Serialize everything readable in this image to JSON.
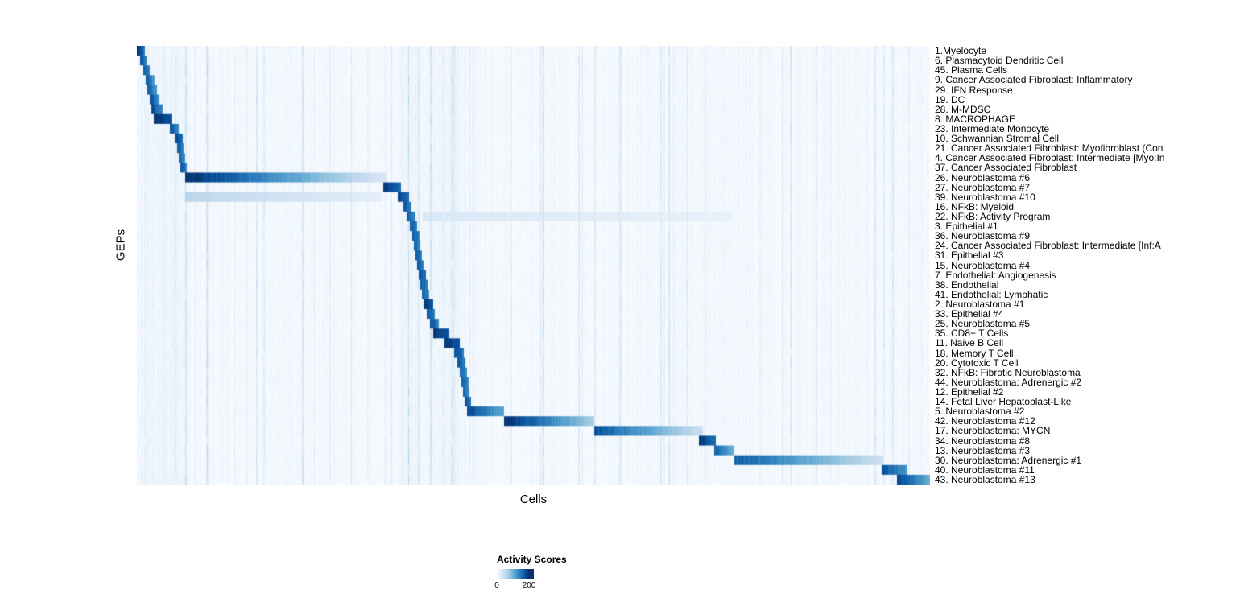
{
  "chart_data": {
    "type": "heatmap",
    "title": "",
    "xlabel": "Cells",
    "ylabel": "GEPs",
    "colormap": "Blues",
    "colors": {
      "low": "#f7fbff",
      "high": "#08306b"
    },
    "legend": {
      "title": "Activity Scores",
      "min": 0,
      "max": 200,
      "ticks": [
        {
          "label": "0",
          "pos": 0.0
        },
        {
          "label": "200",
          "pos": 0.87
        }
      ]
    },
    "rows": [
      {
        "label": "1.Myelocyte",
        "segments": [
          [
            0.0,
            0.01,
            210,
            150
          ]
        ]
      },
      {
        "label": "6. Plasmacytoid Dendritic Cell",
        "segments": [
          [
            0.004,
            0.012,
            185,
            140
          ]
        ]
      },
      {
        "label": "45. Plasma Cells",
        "segments": [
          [
            0.008,
            0.016,
            180,
            140
          ]
        ]
      },
      {
        "label": "9. Cancer Associated Fibroblast: Inflammatory",
        "segments": [
          [
            0.011,
            0.022,
            185,
            120
          ]
        ]
      },
      {
        "label": "29. IFN Response",
        "segments": [
          [
            0.013,
            0.025,
            175,
            120
          ]
        ]
      },
      {
        "label": "19. DC",
        "segments": [
          [
            0.016,
            0.028,
            185,
            130
          ]
        ]
      },
      {
        "label": "28. M-MDSC",
        "segments": [
          [
            0.018,
            0.032,
            185,
            140
          ]
        ]
      },
      {
        "label": "8. MACROPHAGE",
        "segments": [
          [
            0.021,
            0.043,
            210,
            180
          ]
        ]
      },
      {
        "label": "23. Intermediate Monocyte",
        "segments": [
          [
            0.041,
            0.052,
            180,
            140
          ]
        ]
      },
      {
        "label": "10. Schwannian Stromal Cell",
        "segments": [
          [
            0.047,
            0.057,
            195,
            160
          ]
        ]
      },
      {
        "label": "21. Cancer Associated Fibroblast: Myofibroblast (Con",
        "segments": [
          [
            0.05,
            0.058,
            180,
            140
          ]
        ]
      },
      {
        "label": "4. Cancer Associated Fibroblast: Intermediate [Myo:In",
        "segments": [
          [
            0.052,
            0.06,
            170,
            135
          ]
        ]
      },
      {
        "label": "37. Cancer Associated Fibroblast",
        "segments": [
          [
            0.054,
            0.062,
            180,
            145
          ]
        ]
      },
      {
        "label": "26. Neuroblastoma #6",
        "segments": [
          [
            0.06,
            0.315,
            210,
            30
          ]
        ]
      },
      {
        "label": "27. Neuroblastoma #7",
        "segments": [
          [
            0.31,
            0.332,
            205,
            160
          ]
        ]
      },
      {
        "label": "39. Neuroblastoma #10",
        "segments": [
          [
            0.06,
            0.308,
            60,
            20
          ],
          [
            0.328,
            0.343,
            195,
            155
          ]
        ]
      },
      {
        "label": "16. NFkB: Myeloid",
        "segments": [
          [
            0.336,
            0.346,
            180,
            140
          ]
        ]
      },
      {
        "label": "22. NFkB: Activity Program",
        "segments": [
          [
            0.34,
            0.351,
            175,
            135
          ],
          [
            0.36,
            0.75,
            30,
            15
          ]
        ]
      },
      {
        "label": "3. Epithelial #1",
        "segments": [
          [
            0.344,
            0.353,
            180,
            140
          ]
        ]
      },
      {
        "label": "36. Neuroblastoma #9",
        "segments": [
          [
            0.347,
            0.356,
            180,
            145
          ]
        ]
      },
      {
        "label": "24. Cancer Associated Fibroblast: Intermediate [Inf:A",
        "segments": [
          [
            0.349,
            0.357,
            170,
            135
          ]
        ]
      },
      {
        "label": "31. Epithelial #3",
        "segments": [
          [
            0.351,
            0.359,
            180,
            140
          ]
        ]
      },
      {
        "label": "15. Neuroblastoma #4",
        "segments": [
          [
            0.353,
            0.361,
            180,
            145
          ]
        ]
      },
      {
        "label": "7. Endothelial: Angiogenesis",
        "segments": [
          [
            0.355,
            0.364,
            190,
            155
          ]
        ]
      },
      {
        "label": "38. Endothelial",
        "segments": [
          [
            0.357,
            0.366,
            180,
            145
          ]
        ]
      },
      {
        "label": "41. Endothelial: Lymphatic",
        "segments": [
          [
            0.359,
            0.368,
            170,
            135
          ]
        ]
      },
      {
        "label": "2. Neuroblastoma #1",
        "segments": [
          [
            0.361,
            0.373,
            205,
            170
          ]
        ]
      },
      {
        "label": "33. Epithelial #4",
        "segments": [
          [
            0.365,
            0.375,
            180,
            140
          ]
        ]
      },
      {
        "label": "25. Neuroblastoma #5",
        "segments": [
          [
            0.369,
            0.38,
            180,
            145
          ]
        ]
      },
      {
        "label": "35. CD8+ T Cells",
        "segments": [
          [
            0.373,
            0.393,
            205,
            180
          ]
        ]
      },
      {
        "label": "11. Naive B Cell",
        "segments": [
          [
            0.387,
            0.407,
            205,
            180
          ]
        ]
      },
      {
        "label": "18. Memory T Cell",
        "segments": [
          [
            0.4,
            0.412,
            180,
            150
          ]
        ]
      },
      {
        "label": "20. Cytotoxic T Cell",
        "segments": [
          [
            0.404,
            0.414,
            180,
            140
          ]
        ]
      },
      {
        "label": "32. NFkB: Fibrotic Neuroblastoma",
        "segments": [
          [
            0.407,
            0.416,
            170,
            135
          ]
        ]
      },
      {
        "label": "44. Neuroblastoma: Adrenergic #2",
        "segments": [
          [
            0.409,
            0.418,
            170,
            135
          ]
        ]
      },
      {
        "label": "12. Epithelial #2",
        "segments": [
          [
            0.411,
            0.419,
            170,
            135
          ]
        ]
      },
      {
        "label": "14. Fetal Liver Hepatoblast-Like",
        "segments": [
          [
            0.413,
            0.421,
            180,
            145
          ]
        ]
      },
      {
        "label": "5. Neuroblastoma #2",
        "segments": [
          [
            0.416,
            0.462,
            190,
            110
          ]
        ]
      },
      {
        "label": "42. Neuroblastoma #12",
        "segments": [
          [
            0.462,
            0.576,
            210,
            70
          ]
        ]
      },
      {
        "label": "17. Neuroblastoma: MYCN",
        "segments": [
          [
            0.576,
            0.713,
            180,
            45
          ]
        ]
      },
      {
        "label": "34. Neuroblastoma #8",
        "segments": [
          [
            0.708,
            0.729,
            205,
            160
          ]
        ]
      },
      {
        "label": "13. Neuroblastoma #3",
        "segments": [
          [
            0.727,
            0.753,
            170,
            100
          ]
        ]
      },
      {
        "label": "30. Neuroblastoma: Adrenergic #1",
        "segments": [
          [
            0.753,
            0.941,
            170,
            45
          ]
        ]
      },
      {
        "label": "40. Neuroblastoma #11",
        "segments": [
          [
            0.939,
            0.971,
            185,
            120
          ]
        ]
      },
      {
        "label": "43. Neuroblastoma #13",
        "segments": [
          [
            0.958,
            1.0,
            195,
            100
          ]
        ]
      }
    ]
  }
}
